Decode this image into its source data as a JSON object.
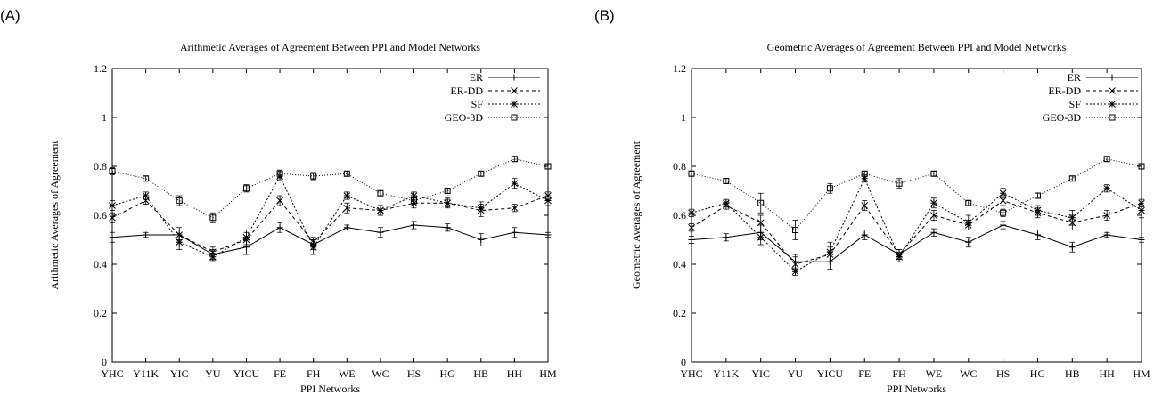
{
  "panels": [
    {
      "letter": "(A)",
      "chart_data": {
        "type": "line",
        "title": "Arithmetic Averages of Agreement Between PPI and Model Networks",
        "xlabel": "PPI Networks",
        "ylabel": "Arithmetic Averages of Agreement",
        "ylim": [
          0,
          1.2
        ],
        "yticks": [
          "0",
          "0.2",
          "0.4",
          "0.6",
          "0.8",
          "1",
          "1.2"
        ],
        "grid": false,
        "legend_position": "top-right",
        "categories": [
          "YHC",
          "Y11K",
          "YIC",
          "YU",
          "YICU",
          "FE",
          "FH",
          "WE",
          "WC",
          "HS",
          "HG",
          "HB",
          "HH",
          "HM"
        ],
        "series": [
          {
            "name": "ER",
            "style": "solid",
            "marker": "plus",
            "values": [
              0.51,
              0.52,
              0.52,
              0.44,
              0.47,
              0.55,
              0.48,
              0.55,
              0.53,
              0.56,
              0.55,
              0.5,
              0.53,
              0.52
            ],
            "errors": [
              0.02,
              0.01,
              0.02,
              0.02,
              0.03,
              0.02,
              0.02,
              0.01,
              0.02,
              0.015,
              0.015,
              0.025,
              0.02,
              0.01
            ]
          },
          {
            "name": "ER-DD",
            "style": "dashed",
            "marker": "cross",
            "values": [
              0.59,
              0.66,
              0.52,
              0.45,
              0.5,
              0.66,
              0.49,
              0.63,
              0.62,
              0.65,
              0.65,
              0.62,
              0.63,
              0.68
            ],
            "errors": [
              0.02,
              0.015,
              0.03,
              0.02,
              0.03,
              0.02,
              0.02,
              0.02,
              0.02,
              0.02,
              0.02,
              0.025,
              0.015,
              0.015
            ]
          },
          {
            "name": "SF",
            "style": "dotted",
            "marker": "star",
            "values": [
              0.64,
              0.68,
              0.49,
              0.43,
              0.51,
              0.76,
              0.47,
              0.68,
              0.62,
              0.68,
              0.65,
              0.63,
              0.73,
              0.66
            ],
            "errors": [
              0.02,
              0.015,
              0.03,
              0.015,
              0.03,
              0.015,
              0.03,
              0.015,
              0.02,
              0.015,
              0.015,
              0.025,
              0.02,
              0.02
            ]
          },
          {
            "name": "GEO-3D",
            "style": "dotted-fine",
            "marker": "square",
            "values": [
              0.78,
              0.75,
              0.66,
              0.59,
              0.71,
              0.77,
              0.76,
              0.77,
              0.69,
              0.66,
              0.7,
              0.77,
              0.83,
              0.8
            ],
            "errors": [
              0.015,
              0.01,
              0.02,
              0.02,
              0.015,
              0.015,
              0.015,
              0.01,
              0.01,
              0.015,
              0.01,
              0.01,
              0.01,
              0.01
            ]
          }
        ]
      }
    },
    {
      "letter": "(B)",
      "chart_data": {
        "type": "line",
        "title": "Geometric Averages of Agreement Between PPI and Model Networks",
        "xlabel": "PPI Networks",
        "ylabel": "Geometric Averages of Agreement",
        "ylim": [
          0,
          1.2
        ],
        "yticks": [
          "0",
          "0.2",
          "0.4",
          "0.6",
          "0.8",
          "1",
          "1.2"
        ],
        "grid": false,
        "legend_position": "top-right",
        "categories": [
          "YHC",
          "Y11K",
          "YIC",
          "YU",
          "YICU",
          "FE",
          "FH",
          "WE",
          "WC",
          "HS",
          "HG",
          "HB",
          "HH",
          "HM"
        ],
        "series": [
          {
            "name": "ER",
            "style": "solid",
            "marker": "plus",
            "values": [
              0.5,
              0.51,
              0.53,
              0.41,
              0.41,
              0.52,
              0.44,
              0.53,
              0.49,
              0.56,
              0.52,
              0.47,
              0.52,
              0.5
            ],
            "errors": [
              0.015,
              0.015,
              0.03,
              0.03,
              0.03,
              0.02,
              0.02,
              0.015,
              0.02,
              0.015,
              0.02,
              0.02,
              0.01,
              0.01
            ]
          },
          {
            "name": "ER-DD",
            "style": "dashed",
            "marker": "cross",
            "values": [
              0.55,
              0.64,
              0.57,
              0.4,
              0.44,
              0.64,
              0.44,
              0.6,
              0.56,
              0.66,
              0.61,
              0.57,
              0.6,
              0.65
            ],
            "errors": [
              0.015,
              0.015,
              0.03,
              0.03,
              0.03,
              0.02,
              0.02,
              0.02,
              0.02,
              0.02,
              0.02,
              0.03,
              0.02,
              0.015
            ]
          },
          {
            "name": "SF",
            "style": "dotted",
            "marker": "star",
            "values": [
              0.61,
              0.65,
              0.51,
              0.37,
              0.45,
              0.75,
              0.43,
              0.65,
              0.57,
              0.69,
              0.62,
              0.59,
              0.71,
              0.62
            ],
            "errors": [
              0.015,
              0.015,
              0.03,
              0.015,
              0.04,
              0.015,
              0.02,
              0.02,
              0.03,
              0.02,
              0.02,
              0.03,
              0.015,
              0.03
            ]
          },
          {
            "name": "GEO-3D",
            "style": "dotted-fine",
            "marker": "square",
            "values": [
              0.77,
              0.74,
              0.65,
              0.54,
              0.71,
              0.77,
              0.73,
              0.77,
              0.65,
              0.61,
              0.68,
              0.75,
              0.83,
              0.8
            ],
            "errors": [
              0.01,
              0.01,
              0.04,
              0.04,
              0.02,
              0.01,
              0.02,
              0.01,
              0.01,
              0.015,
              0.01,
              0.01,
              0.01,
              0.01
            ]
          }
        ]
      }
    }
  ]
}
